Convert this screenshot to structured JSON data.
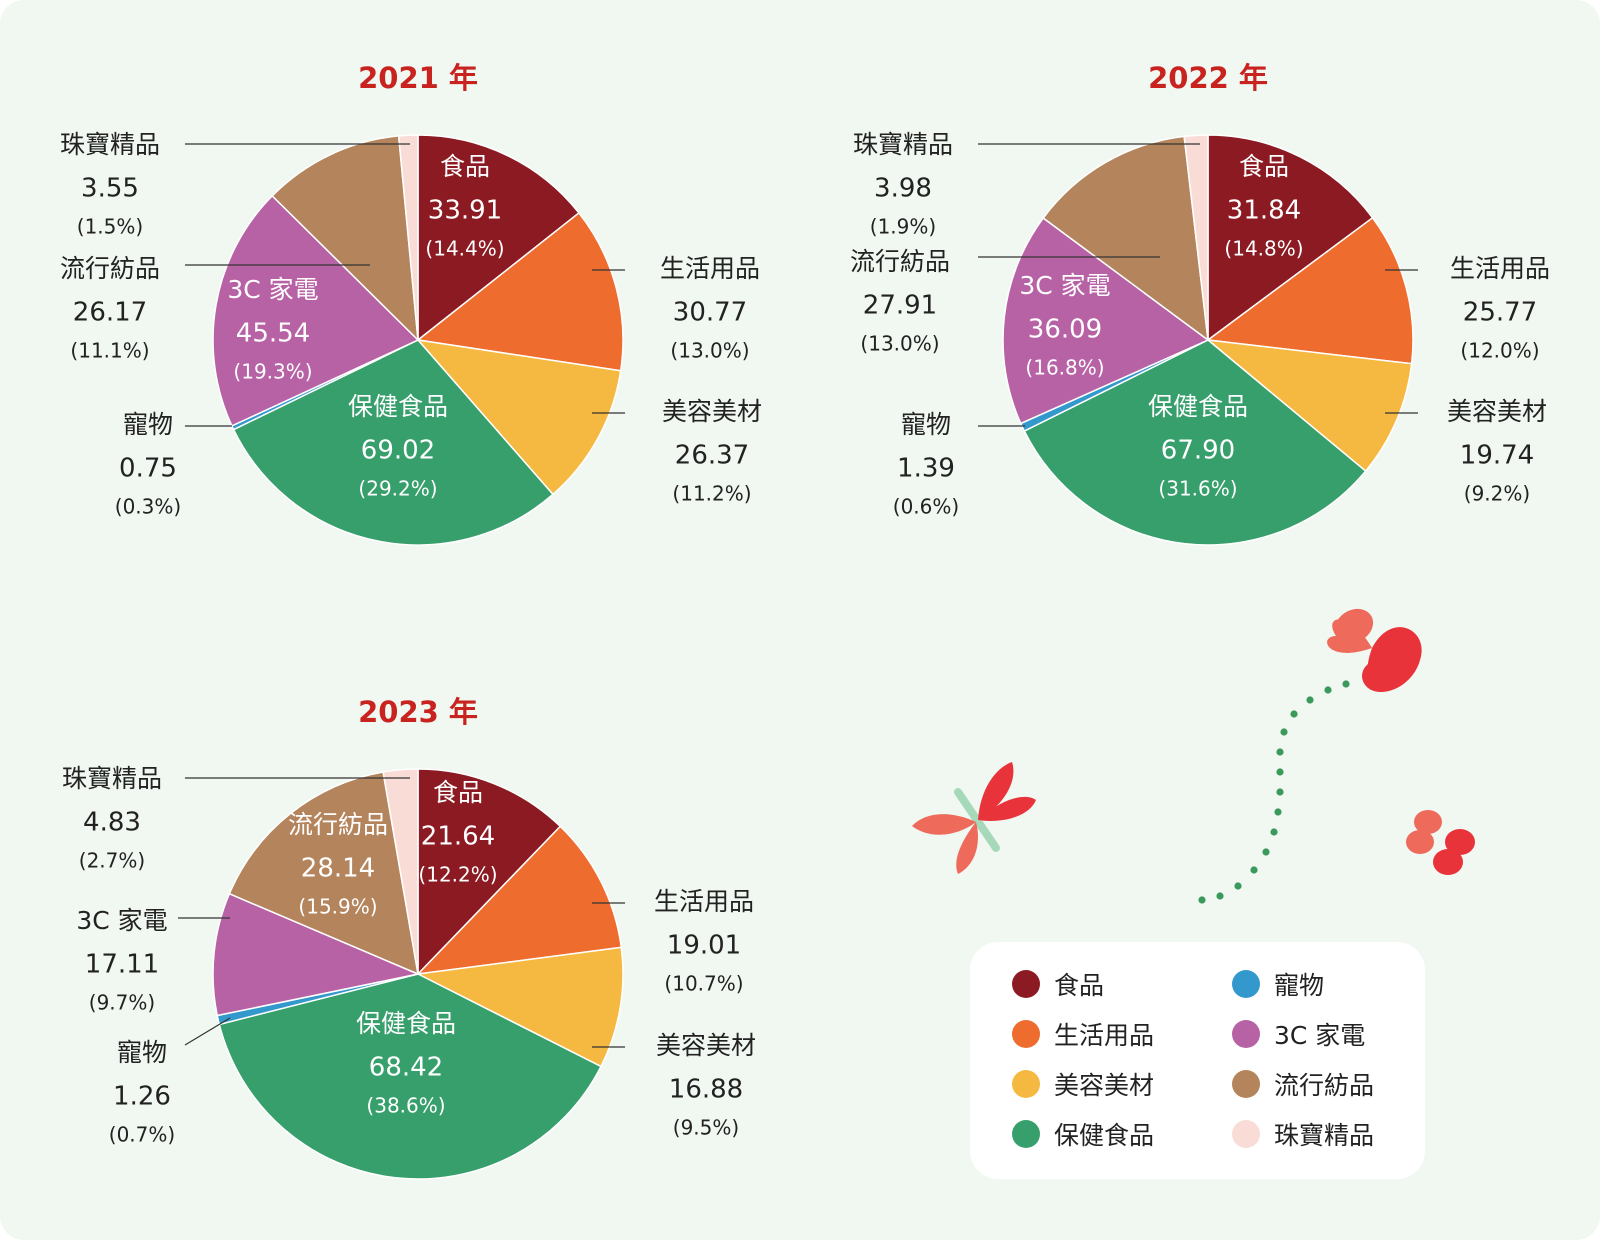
{
  "legend": [
    {
      "name": "食品",
      "color": "#8b1a22"
    },
    {
      "name": "生活用品",
      "color": "#ee6c2e"
    },
    {
      "name": "美容美材",
      "color": "#f5b942"
    },
    {
      "name": "保健食品",
      "color": "#379f6c"
    },
    {
      "name": "寵物",
      "color": "#3399cc"
    },
    {
      "name": "3C 家電",
      "color": "#b862a6"
    },
    {
      "name": "流行紡品",
      "color": "#b4845c"
    },
    {
      "name": "珠寶精品",
      "color": "#f9dcd6"
    }
  ],
  "chart_data": [
    {
      "type": "pie",
      "title": "2021 年",
      "categories": [
        "食品",
        "生活用品",
        "美容美材",
        "保健食品",
        "寵物",
        "3C 家電",
        "流行紡品",
        "珠寶精品"
      ],
      "values": [
        33.91,
        30.77,
        26.37,
        69.02,
        0.75,
        45.54,
        26.17,
        3.55
      ],
      "percents": [
        "(14.4%)",
        "(13.0%)",
        "(11.2%)",
        "(29.2%)",
        "(0.3%)",
        "(19.3%)",
        "(11.1%)",
        "(1.5%)"
      ],
      "value_labels": [
        "33.91",
        "30.77",
        "26.37",
        "69.02",
        "0.75",
        "45.54",
        "26.17",
        "3.55"
      ]
    },
    {
      "type": "pie",
      "title": "2022 年",
      "categories": [
        "食品",
        "生活用品",
        "美容美材",
        "保健食品",
        "寵物",
        "3C 家電",
        "流行紡品",
        "珠寶精品"
      ],
      "values": [
        31.84,
        25.77,
        19.74,
        67.9,
        1.39,
        36.09,
        27.91,
        3.98
      ],
      "percents": [
        "(14.8%)",
        "(12.0%)",
        "(9.2%)",
        "(31.6%)",
        "(0.6%)",
        "(16.8%)",
        "(13.0%)",
        "(1.9%)"
      ],
      "value_labels": [
        "31.84",
        "25.77",
        "19.74",
        "67.90",
        "1.39",
        "36.09",
        "27.91",
        "3.98"
      ]
    },
    {
      "type": "pie",
      "title": "2023 年",
      "categories": [
        "食品",
        "生活用品",
        "美容美材",
        "保健食品",
        "寵物",
        "3C 家電",
        "流行紡品",
        "珠寶精品"
      ],
      "values": [
        21.64,
        19.01,
        16.88,
        68.42,
        1.26,
        17.11,
        28.14,
        4.83
      ],
      "percents": [
        "(12.2%)",
        "(10.7%)",
        "(9.5%)",
        "(38.6%)",
        "(0.7%)",
        "(9.7%)",
        "(15.9%)",
        "(2.7%)"
      ],
      "value_labels": [
        "21.64",
        "19.01",
        "16.88",
        "68.42",
        "1.26",
        "17.11",
        "28.14",
        "4.83"
      ]
    }
  ]
}
